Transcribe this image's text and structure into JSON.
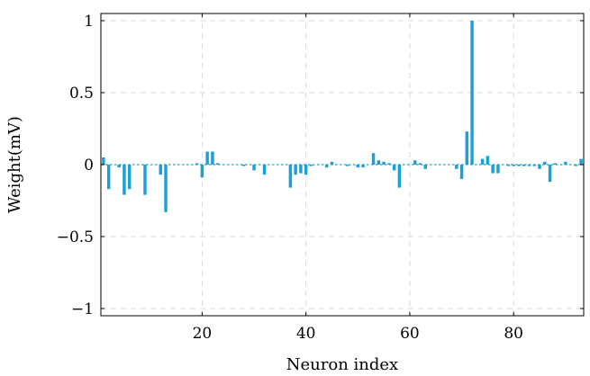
{
  "chart_data": {
    "type": "bar",
    "xlabel": "Neuron index",
    "ylabel": "Weight(mV)",
    "xlim": [
      0.5,
      93.5
    ],
    "ylim": [
      -1.05,
      1.05
    ],
    "xticks": [
      20,
      40,
      60,
      80
    ],
    "xtick_labels": [
      "20",
      "40",
      "60",
      "80"
    ],
    "yticks": [
      -1,
      -0.5,
      0,
      0.5,
      1
    ],
    "ytick_labels": [
      "−1",
      "−0.5",
      "0",
      "0.5",
      "1"
    ],
    "grid": true,
    "bar_color": "#1aa1da",
    "x": [
      1,
      2,
      3,
      4,
      5,
      6,
      7,
      8,
      9,
      10,
      11,
      12,
      13,
      14,
      15,
      16,
      17,
      18,
      19,
      20,
      21,
      22,
      23,
      24,
      25,
      26,
      27,
      28,
      29,
      30,
      31,
      32,
      33,
      34,
      35,
      36,
      37,
      38,
      39,
      40,
      41,
      42,
      43,
      44,
      45,
      46,
      47,
      48,
      49,
      50,
      51,
      52,
      53,
      54,
      55,
      56,
      57,
      58,
      59,
      60,
      61,
      62,
      63,
      64,
      65,
      66,
      67,
      68,
      69,
      70,
      71,
      72,
      73,
      74,
      75,
      76,
      77,
      78,
      79,
      80,
      81,
      82,
      83,
      84,
      85,
      86,
      87,
      88,
      89,
      90,
      91,
      92,
      93
    ],
    "values": [
      0.05,
      -0.17,
      0.0,
      -0.02,
      -0.21,
      -0.17,
      0.0,
      0.0,
      -0.21,
      0.0,
      0.0,
      -0.07,
      -0.33,
      0.0,
      0.0,
      0.0,
      0.0,
      0.0,
      0.01,
      -0.09,
      0.09,
      0.09,
      0.01,
      0.0,
      0.0,
      0.0,
      0.0,
      -0.01,
      0.0,
      -0.04,
      0.0,
      -0.07,
      0.0,
      0.0,
      0.0,
      0.0,
      -0.16,
      -0.07,
      -0.06,
      -0.07,
      -0.01,
      0.0,
      0.0,
      -0.02,
      0.02,
      0.0,
      0.0,
      -0.01,
      0.0,
      -0.02,
      -0.02,
      0.0,
      0.08,
      0.03,
      0.02,
      0.01,
      -0.04,
      -0.16,
      0.0,
      0.0,
      0.03,
      0.01,
      -0.03,
      0.0,
      0.0,
      0.0,
      0.0,
      0.0,
      -0.03,
      -0.1,
      0.23,
      1.0,
      0.0,
      0.04,
      0.06,
      -0.06,
      -0.06,
      0.0,
      -0.01,
      -0.01,
      -0.01,
      -0.01,
      -0.01,
      -0.01,
      -0.03,
      0.02,
      -0.12,
      0.01,
      0.0,
      0.02,
      0.0,
      -0.01,
      0.04
    ]
  }
}
